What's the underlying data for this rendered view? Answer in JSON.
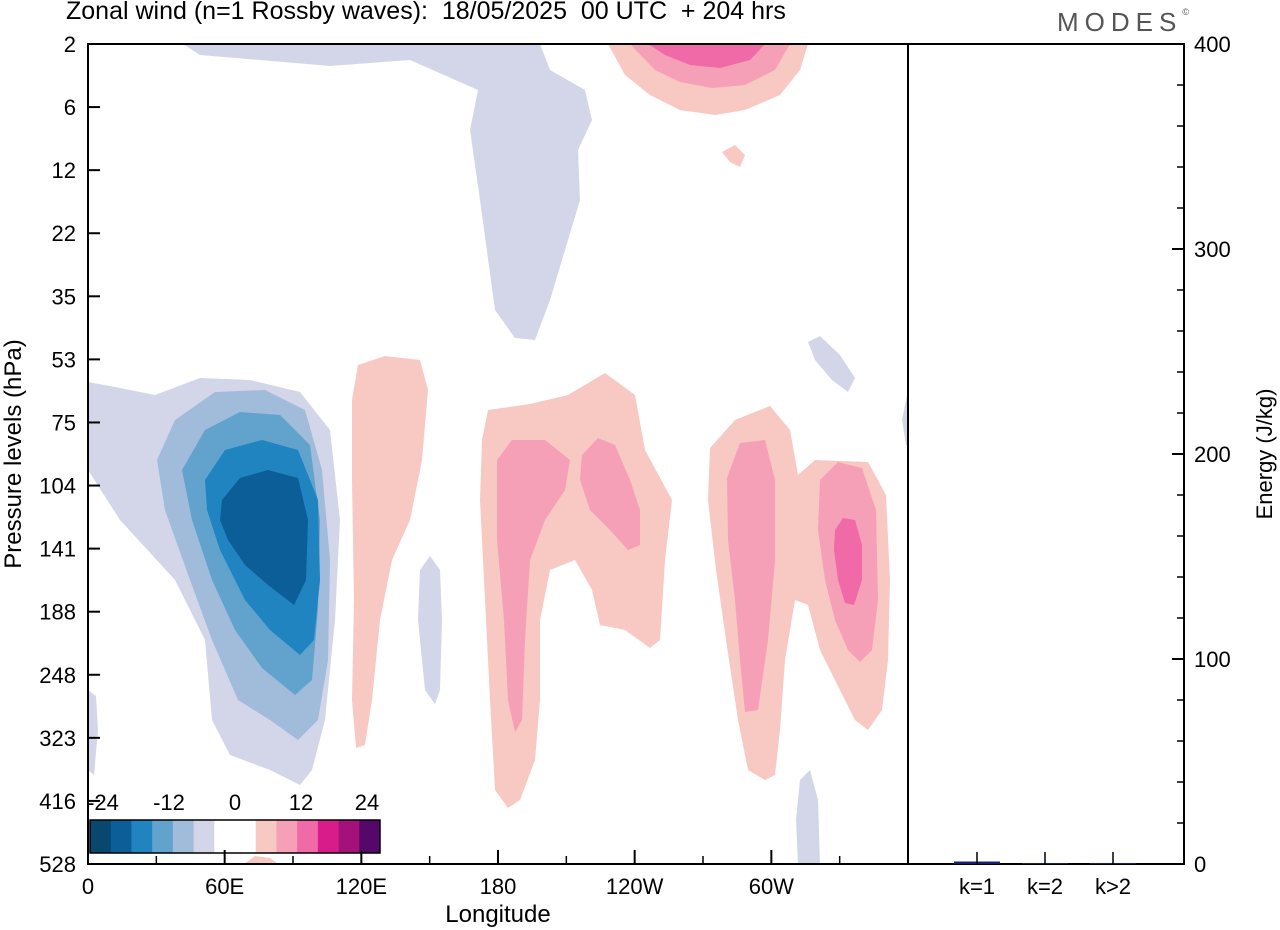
{
  "title": "Zonal wind (n=1 Rossby waves):  18/05/2025  00 UTC  + 204 hrs",
  "logo": {
    "text": "MODES",
    "mark": "©"
  },
  "colors": {
    "neg5": "#08476e",
    "neg4": "#0c5e98",
    "neg3": "#1f84bf",
    "neg2": "#62a3cd",
    "neg1": "#a1bbdb",
    "neg0": "#d3d6e8",
    "zero": "#ffffff",
    "pos0": "#f8c8c3",
    "pos1": "#f5a0b6",
    "pos2": "#f06aa8",
    "pos3": "#d81d8a",
    "pos4": "#a4117a",
    "pos5": "#55086a",
    "bar": "#1a1a6e"
  },
  "chart_data": [
    {
      "type": "heatmap",
      "title": "Zonal wind (n=1 Rossby waves):  18/05/2025  00 UTC  + 204 hrs",
      "xlabel": "Longitude",
      "ylabel": "Pressure levels (hPa)",
      "x_ticks": [
        "0",
        "60E",
        "120E",
        "180",
        "120W",
        "60W"
      ],
      "x_tick_degrees": [
        0,
        60,
        120,
        180,
        240,
        300
      ],
      "xlim_degrees": [
        0,
        360
      ],
      "y_ticks": [
        "2",
        "6",
        "12",
        "22",
        "35",
        "53",
        "75",
        "104",
        "141",
        "188",
        "248",
        "323",
        "416",
        "528"
      ],
      "colorbar": {
        "tick_labels": [
          "-24",
          "-12",
          "0",
          "12",
          "24"
        ],
        "levels": [
          -30,
          -24,
          -18,
          -12,
          -6,
          -3,
          3,
          6,
          12,
          18,
          24,
          30
        ]
      },
      "features": [
        {
          "sign": "negative",
          "level": 5,
          "lon": 80,
          "level_index": 8.0,
          "value": -25
        },
        {
          "sign": "negative",
          "level": 1,
          "lon": 195,
          "level_index": 2.5,
          "value": -3
        },
        {
          "sign": "negative",
          "level": 1,
          "lon": 150,
          "level_index": 9.5,
          "value": -3
        },
        {
          "sign": "positive",
          "level": 1,
          "lon": 128,
          "level_index": 8.0,
          "value": 4
        },
        {
          "sign": "positive",
          "level": 2,
          "lon": 192,
          "level_index": 8.5,
          "value": 8
        },
        {
          "sign": "positive",
          "level": 2,
          "lon": 230,
          "level_index": 7.5,
          "value": 8
        },
        {
          "sign": "positive",
          "level": 2,
          "lon": 280,
          "level_index": 8.5,
          "value": 8
        },
        {
          "sign": "positive",
          "level": 3,
          "lon": 334,
          "level_index": 8.0,
          "value": 14
        },
        {
          "sign": "positive",
          "level": 3,
          "lon": 273,
          "level_index": 0.1,
          "value": 14
        }
      ]
    },
    {
      "type": "bar",
      "categories": [
        "k=1",
        "k=2",
        "k>2"
      ],
      "values": [
        1.2,
        0.4,
        0.5
      ],
      "ylabel": "Energy (J/kg)",
      "y_ticks": [
        "0",
        "100",
        "200",
        "300",
        "400"
      ],
      "ylim": [
        0,
        400
      ]
    }
  ]
}
